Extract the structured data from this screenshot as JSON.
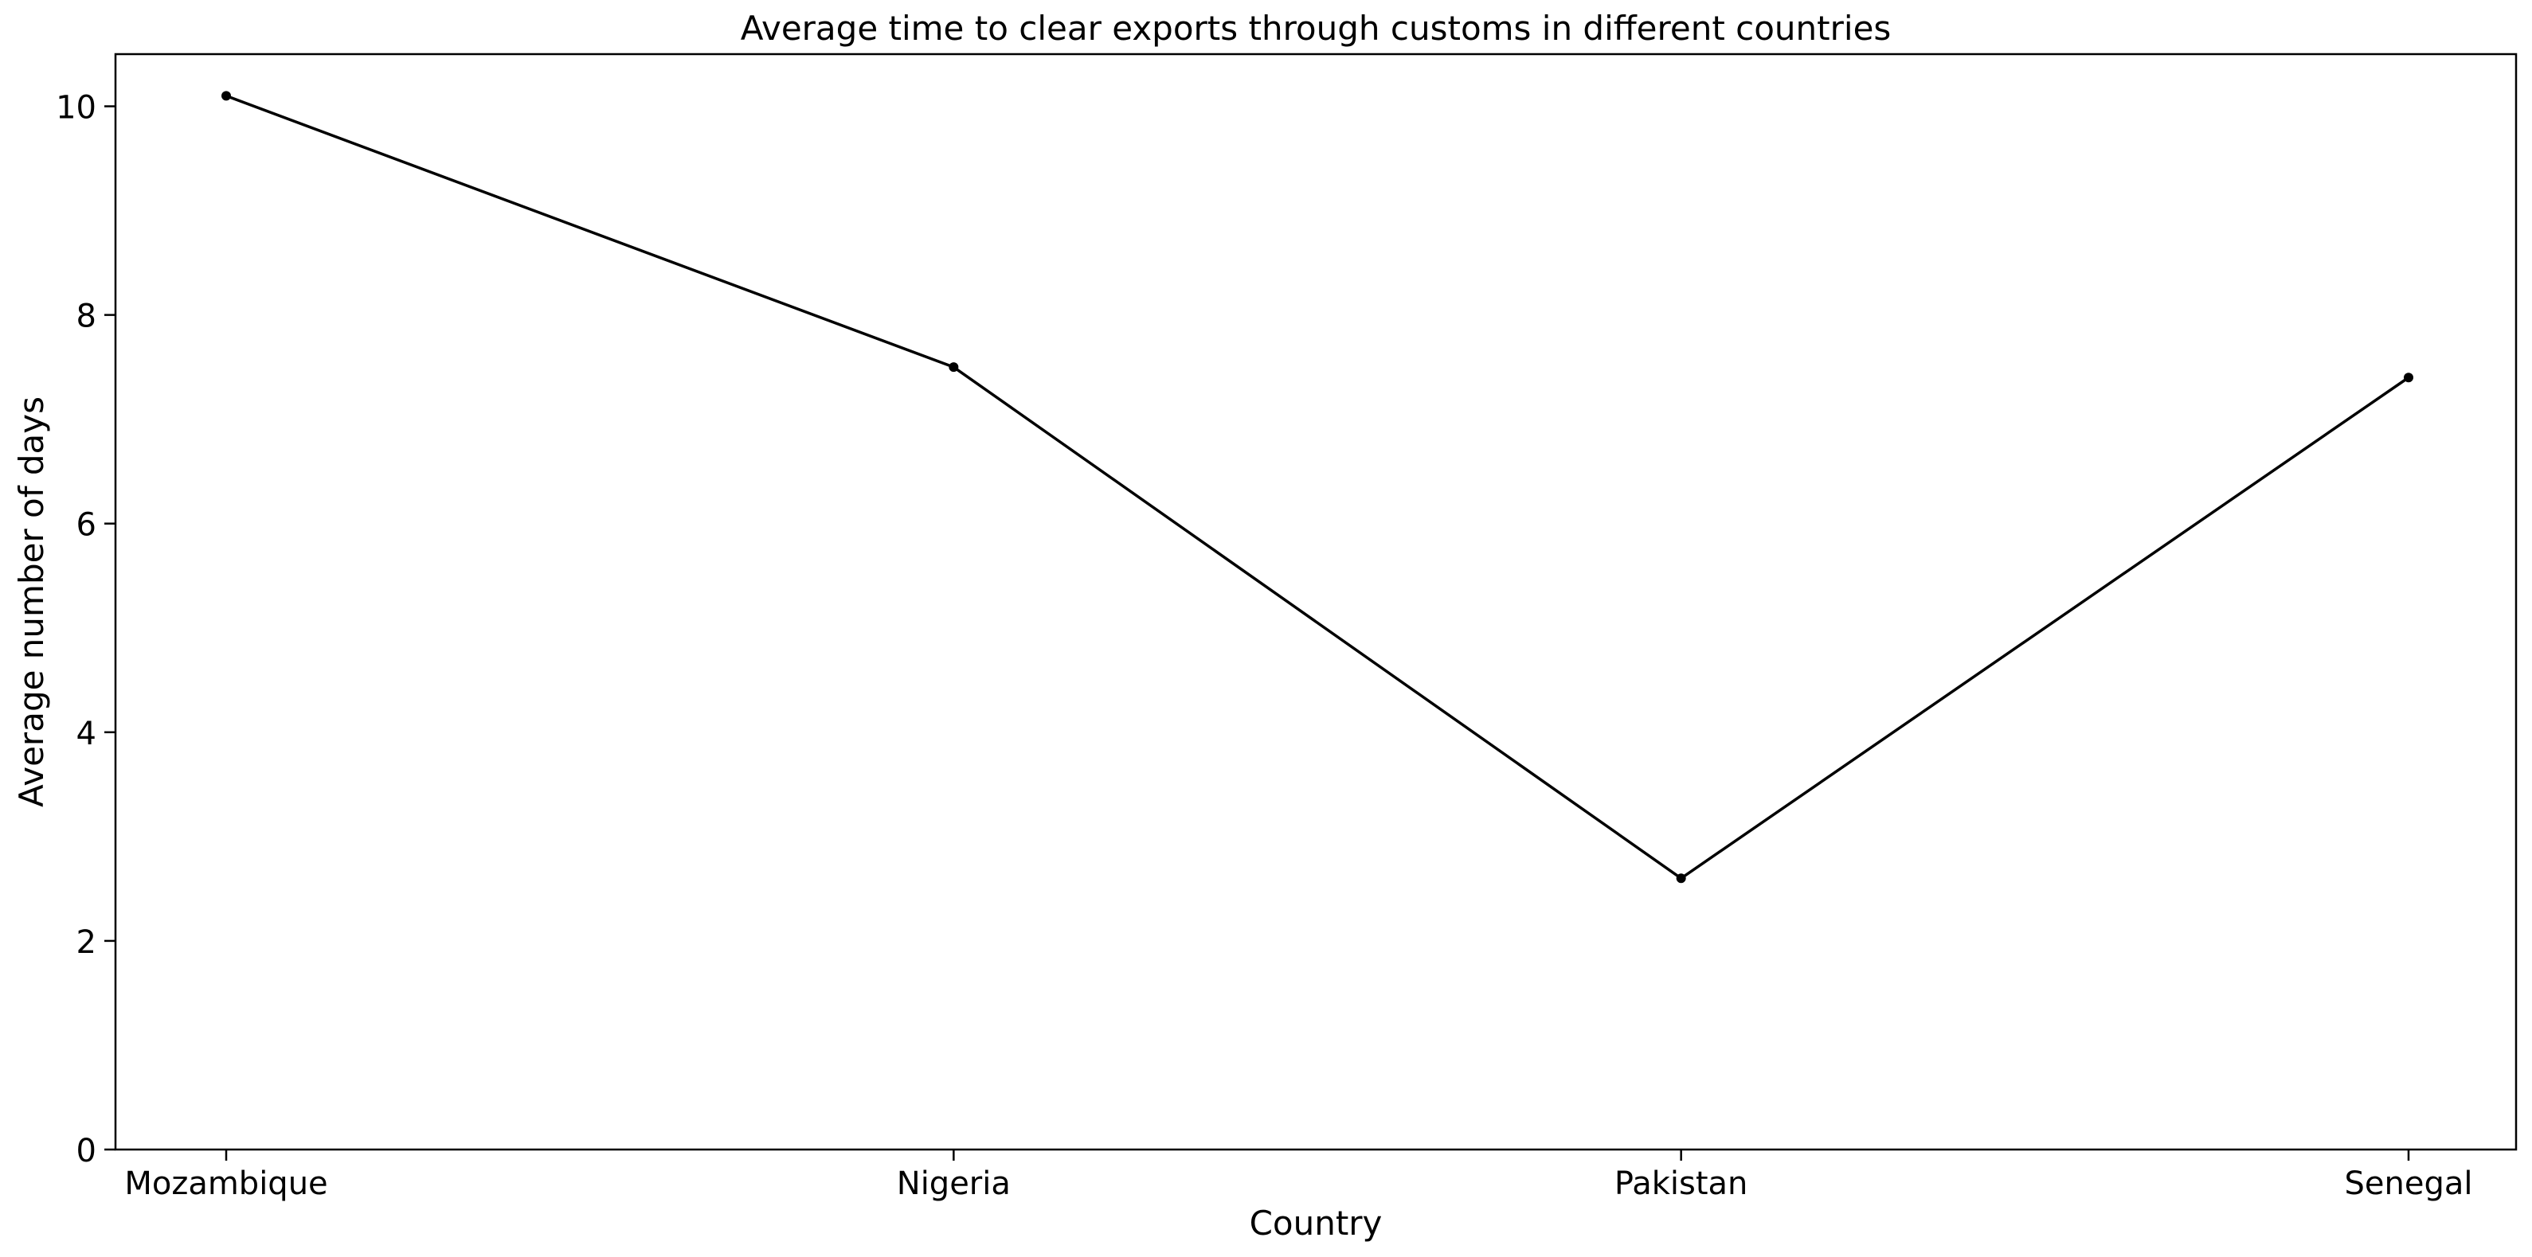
{
  "chart_data": {
    "type": "line",
    "title": "Average time to clear exports through customs in different countries",
    "xlabel": "Country",
    "ylabel": "Average number of days",
    "categories": [
      "Mozambique",
      "Nigeria",
      "Pakistan",
      "Senegal"
    ],
    "series": [
      {
        "values": [
          10.1,
          7.5,
          2.6,
          7.4
        ]
      }
    ],
    "ylim": [
      0,
      10.5
    ],
    "yticks": [
      0,
      2,
      4,
      6,
      8,
      10
    ],
    "grid": false,
    "line_color": "#000000",
    "marker": "dot"
  }
}
